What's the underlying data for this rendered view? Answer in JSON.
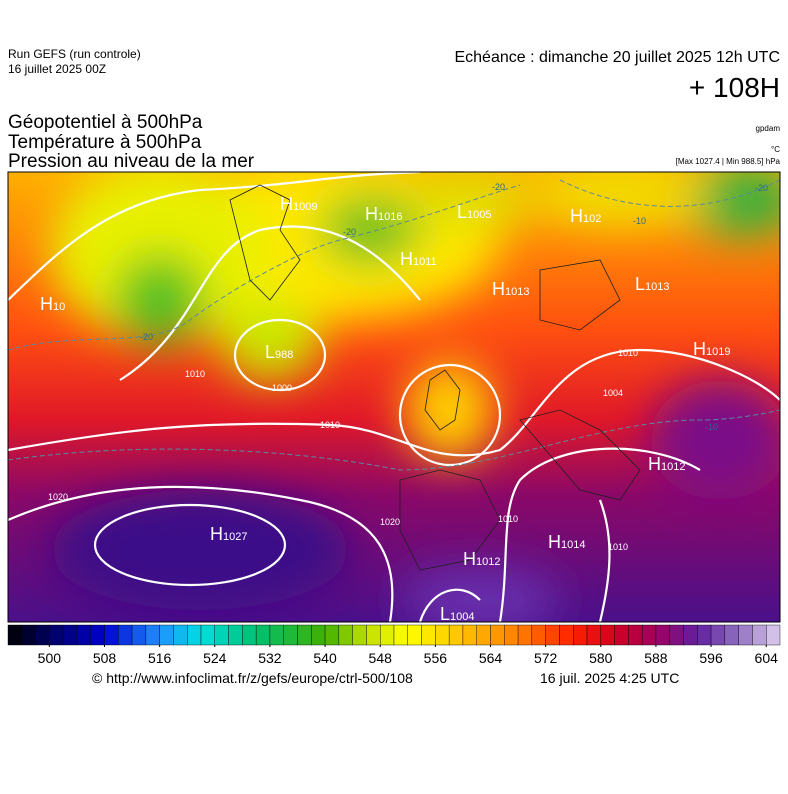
{
  "header": {
    "run": "Run GEFS (run controle)",
    "run_date": "16 juillet 2025 00Z",
    "valid": "Echéance : dimanche 20 juillet 2025 12h UTC",
    "lead": "+ 108H"
  },
  "fields": [
    "Géopotentiel à 500hPa",
    "Température à 500hPa",
    "Pression au niveau de la mer"
  ],
  "units": {
    "geopotential": "gpdam",
    "temperature": "°C",
    "pressure": "[Max 1027.4 | Min 988.5] hPa"
  },
  "centers": [
    {
      "letter": "H",
      "value": "1009"
    },
    {
      "letter": "H",
      "value": "1016"
    },
    {
      "letter": "L",
      "value": "1005"
    },
    {
      "letter": "H",
      "value": "102"
    },
    {
      "letter": "H",
      "value": "1011"
    },
    {
      "letter": "H",
      "value": "1013"
    },
    {
      "letter": "L",
      "value": "1013"
    },
    {
      "letter": "H",
      "value": "10"
    },
    {
      "letter": "L",
      "value": "988"
    },
    {
      "letter": "H",
      "value": "1019"
    },
    {
      "letter": "H",
      "value": "1012"
    },
    {
      "letter": "H",
      "value": "1027"
    },
    {
      "letter": "H",
      "value": "1014"
    },
    {
      "letter": "H",
      "value": "1012"
    },
    {
      "letter": "L",
      "value": "1004"
    }
  ],
  "isobar_labels": [
    "1010",
    "1000",
    "1010",
    "1020",
    "1020",
    "1010",
    "1004",
    "1010",
    "1010"
  ],
  "isotherm_labels": [
    "-20",
    "-20",
    "-20",
    "-20",
    "-10",
    "-10"
  ],
  "colorbar": {
    "lim": [
      494,
      606
    ],
    "ticks": [
      500,
      508,
      516,
      524,
      532,
      540,
      548,
      556,
      564,
      572,
      580,
      588,
      596,
      604
    ]
  },
  "footer": {
    "source": "© http://www.infoclimat.fr/z/gefs/europe/ctrl-500/108",
    "generated": "16 juil. 2025  4:25 UTC"
  }
}
